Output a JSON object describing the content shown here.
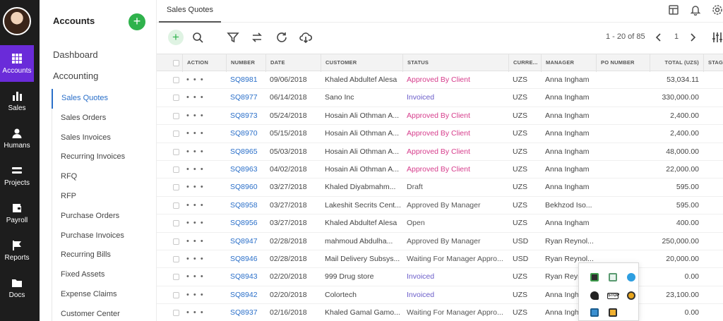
{
  "rail": {
    "items": [
      {
        "label": "Accounts",
        "icon": "grid-icon"
      },
      {
        "label": "Sales",
        "icon": "bar-chart-icon"
      },
      {
        "label": "Humans",
        "icon": "person-icon"
      },
      {
        "label": "Projects",
        "icon": "layers-icon"
      },
      {
        "label": "Payroll",
        "icon": "wallet-icon"
      },
      {
        "label": "Reports",
        "icon": "flag-icon"
      },
      {
        "label": "Docs",
        "icon": "folder-icon"
      }
    ],
    "active_color": "#6a2bd9"
  },
  "subnav": {
    "title": "Accounts",
    "dashboard": "Dashboard",
    "accounting": "Accounting",
    "items": [
      "Sales Quotes",
      "Sales Orders",
      "Sales Invoices",
      "Recurring Invoices",
      "RFQ",
      "RFP",
      "Purchase Orders",
      "Purchase Invoices",
      "Recurring Bills",
      "Fixed Assets",
      "Expense Claims",
      "Customer Center"
    ],
    "active_item": "Sales Quotes"
  },
  "tab": {
    "label": "Sales Quotes"
  },
  "toolbar": {
    "range": "1 - 20 of 85",
    "page": "1"
  },
  "table": {
    "headers": [
      "ACTION",
      "NUMBER",
      "DATE",
      "CUSTOMER",
      "STATUS",
      "CURRE...",
      "MANAGER",
      "PO NUMBER",
      "TOTAL (UZS)",
      "STAGE"
    ],
    "rows": [
      {
        "action": "• • •",
        "number": "SQ8981",
        "date": "09/06/2018",
        "customer": "Khaled Abdultef Alesa",
        "status": "Approved By Client",
        "currency": "UZS",
        "manager": "Anna Ingham",
        "po": "",
        "total": "53,034.11"
      },
      {
        "action": "• • •",
        "number": "SQ8977",
        "date": "06/14/2018",
        "customer": "Sano Inc",
        "status": "Invoiced",
        "currency": "UZS",
        "manager": "Anna Ingham",
        "po": "",
        "total": "330,000.00"
      },
      {
        "action": "• • •",
        "number": "SQ8973",
        "date": "05/24/2018",
        "customer": "Hosain Ali Othman A...",
        "status": "Approved By Client",
        "currency": "UZS",
        "manager": "Anna Ingham",
        "po": "",
        "total": "2,400.00"
      },
      {
        "action": "• • •",
        "number": "SQ8970",
        "date": "05/15/2018",
        "customer": "Hosain Ali Othman A...",
        "status": "Approved By Client",
        "currency": "UZS",
        "manager": "Anna Ingham",
        "po": "",
        "total": "2,400.00"
      },
      {
        "action": "• • •",
        "number": "SQ8965",
        "date": "05/03/2018",
        "customer": "Hosain Ali Othman A...",
        "status": "Approved By Client",
        "currency": "UZS",
        "manager": "Anna Ingham",
        "po": "",
        "total": "48,000.00"
      },
      {
        "action": "• • •",
        "number": "SQ8963",
        "date": "04/02/2018",
        "customer": "Hosain Ali Othman A...",
        "status": "Approved By Client",
        "currency": "UZS",
        "manager": "Anna Ingham",
        "po": "",
        "total": "22,000.00"
      },
      {
        "action": "• • •",
        "number": "SQ8960",
        "date": "03/27/2018",
        "customer": "Khaled Diyabmahm...",
        "status": "Draft",
        "currency": "UZS",
        "manager": "Anna Ingham",
        "po": "",
        "total": "595.00"
      },
      {
        "action": "• • •",
        "number": "SQ8958",
        "date": "03/27/2018",
        "customer": "Lakeshit Secrits Cent...",
        "status": "Approved By Manager",
        "currency": "UZS",
        "manager": "Bekhzod Iso...",
        "po": "",
        "total": "595.00"
      },
      {
        "action": "• • •",
        "number": "SQ8956",
        "date": "03/27/2018",
        "customer": "Khaled Abdultef Alesa",
        "status": "Open",
        "currency": "UZS",
        "manager": "Anna Ingham",
        "po": "",
        "total": "400.00"
      },
      {
        "action": "• • •",
        "number": "SQ8947",
        "date": "02/28/2018",
        "customer": "mahmoud Abdulha...",
        "status": "Approved By Manager",
        "currency": "USD",
        "manager": "Ryan Reynol...",
        "po": "",
        "total": "250,000.00"
      },
      {
        "action": "• • •",
        "number": "SQ8946",
        "date": "02/28/2018",
        "customer": "Mail Delivery Subsys...",
        "status": "Waiting For Manager Appro...",
        "currency": "USD",
        "manager": "Ryan Reynol...",
        "po": "",
        "total": "20,000.00"
      },
      {
        "action": "• • •",
        "number": "SQ8943",
        "date": "02/20/2018",
        "customer": "999 Drug store",
        "status": "Invoiced",
        "currency": "UZS",
        "manager": "Ryan Reynol...",
        "po": "",
        "total": "0.00"
      },
      {
        "action": "• • •",
        "number": "SQ8942",
        "date": "02/20/2018",
        "customer": "Colortech",
        "status": "Invoiced",
        "currency": "UZS",
        "manager": "Anna Ingham",
        "po": "",
        "total": "23,100.00"
      },
      {
        "action": "• • •",
        "number": "SQ8937",
        "date": "02/16/2018",
        "customer": "Khaled Gamal Gamo...",
        "status": "Waiting For Manager Appro...",
        "currency": "UZS",
        "manager": "Anna Ingham",
        "po": "",
        "total": "0.00"
      }
    ]
  },
  "status_colors": {
    "Approved By Client": "#d63c8b",
    "Invoiced": "#6a5cc9",
    "Draft": "#555555",
    "Approved By Manager": "#555555",
    "Open": "#555555",
    "Waiting For Manager Appro...": "#555555"
  },
  "tray_icons": [
    "monitor-icon",
    "chat-icon",
    "telegram-icon",
    "ink-icon",
    "stop-icon",
    "smiley-icon",
    "grid-app-icon",
    "video-icon"
  ]
}
